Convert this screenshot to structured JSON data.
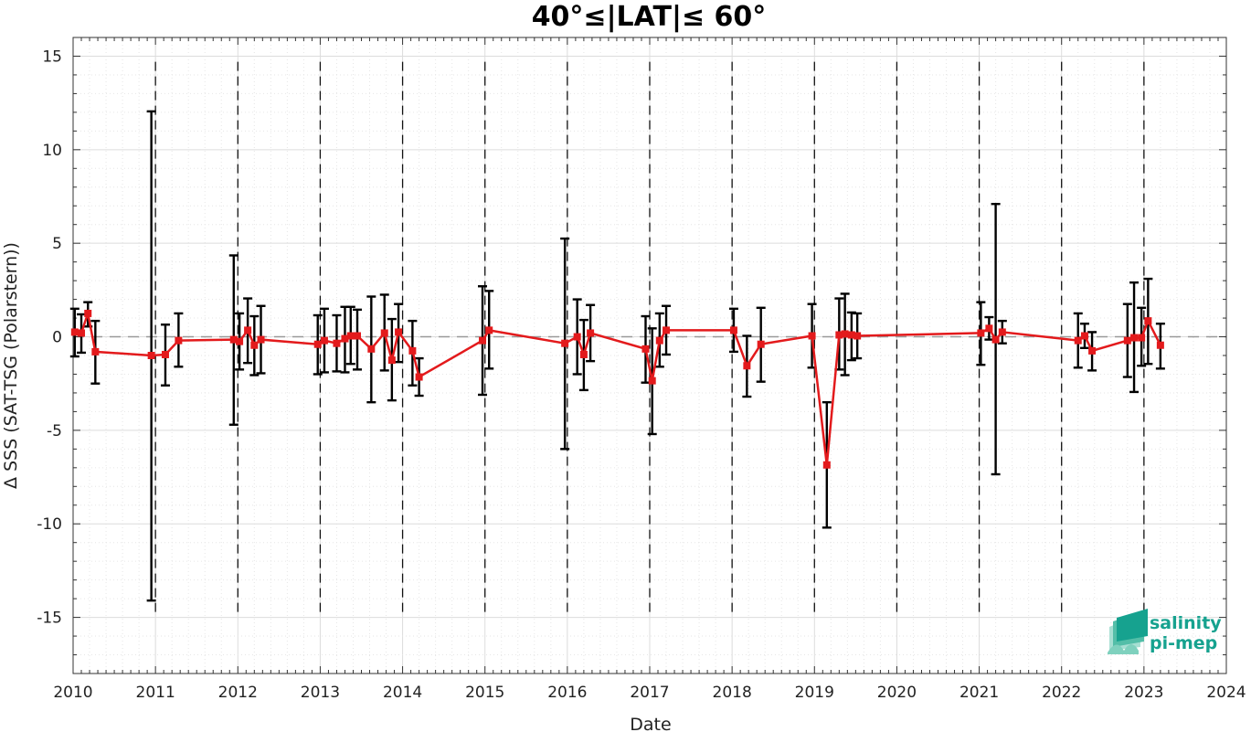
{
  "chart_data": {
    "type": "line",
    "title": "40°≤|LAT|≤ 60°",
    "xlabel": "Date",
    "ylabel": "Δ SSS (SAT-TSG (Polarstern))",
    "xlim": [
      2010,
      2024
    ],
    "ylim": [
      -18,
      16
    ],
    "x_ticks": [
      2010,
      2011,
      2012,
      2013,
      2014,
      2015,
      2016,
      2017,
      2018,
      2019,
      2020,
      2021,
      2022,
      2023,
      2024
    ],
    "y_ticks": [
      15,
      10,
      5,
      0,
      -5,
      -10,
      -15
    ],
    "grid": true,
    "reference_line": 0,
    "year_boundaries": [
      2011,
      2012,
      2013,
      2014,
      2015,
      2016,
      2017,
      2018,
      2019,
      2020,
      2021,
      2022,
      2023
    ],
    "series": [
      {
        "color": "#e31a1c",
        "x": [
          2010.02,
          2010.1,
          2010.18,
          2010.27,
          2010.95,
          2011.12,
          2011.28,
          2011.95,
          2012.02,
          2012.12,
          2012.2,
          2012.28,
          2012.97,
          2013.05,
          2013.2,
          2013.3,
          2013.37,
          2013.45,
          2013.62,
          2013.78,
          2013.87,
          2013.95,
          2014.12,
          2014.2,
          2014.97,
          2015.05,
          2015.97,
          2016.12,
          2016.2,
          2016.28,
          2016.95,
          2017.03,
          2017.12,
          2017.2,
          2018.02,
          2018.18,
          2018.35,
          2018.97,
          2019.15,
          2019.3,
          2019.37,
          2019.45,
          2019.52,
          2021.02,
          2021.12,
          2021.2,
          2021.28,
          2022.2,
          2022.28,
          2022.37,
          2022.8,
          2022.88,
          2022.97,
          2023.05,
          2023.2
        ],
        "y": [
          0.25,
          0.2,
          1.25,
          -0.8,
          -1.0,
          -0.95,
          -0.2,
          -0.15,
          -0.25,
          0.35,
          -0.45,
          -0.15,
          -0.4,
          -0.2,
          -0.35,
          -0.1,
          0.05,
          0.05,
          -0.65,
          0.2,
          -1.25,
          0.25,
          -0.75,
          -2.15,
          -0.2,
          0.35,
          -0.35,
          0.0,
          -0.95,
          0.2,
          -0.65,
          -2.35,
          -0.2,
          0.35,
          0.35,
          -1.55,
          -0.4,
          0.05,
          -6.85,
          0.1,
          0.15,
          0.1,
          0.05,
          0.2,
          0.45,
          -0.15,
          0.25,
          -0.2,
          0.05,
          -0.75,
          -0.2,
          -0.05,
          -0.05,
          0.85,
          -0.45
        ],
        "err_low": [
          -1.05,
          -0.85,
          0.55,
          -2.5,
          -14.1,
          -2.6,
          -1.6,
          -4.7,
          -1.75,
          -1.4,
          -2.05,
          -1.95,
          -2.0,
          -1.9,
          -1.85,
          -1.9,
          -1.45,
          -1.75,
          -3.5,
          -1.8,
          -3.4,
          -1.35,
          -2.6,
          -3.15,
          -3.1,
          -1.7,
          -6.0,
          -2.0,
          -2.85,
          -1.3,
          -2.45,
          -5.2,
          -1.6,
          -0.95,
          -0.8,
          -3.2,
          -2.4,
          -1.65,
          -10.2,
          -1.75,
          -2.05,
          -1.25,
          -1.15,
          -1.5,
          -0.15,
          -7.35,
          -0.35,
          -1.65,
          -0.6,
          -1.8,
          -2.15,
          -2.95,
          -1.55,
          -1.45,
          -1.7
        ],
        "err_high": [
          1.5,
          1.2,
          1.85,
          0.85,
          12.05,
          0.65,
          1.25,
          4.35,
          1.25,
          2.05,
          1.1,
          1.65,
          1.15,
          1.5,
          1.15,
          1.6,
          1.6,
          1.45,
          2.15,
          2.25,
          0.95,
          1.75,
          0.85,
          -1.15,
          2.7,
          2.45,
          5.25,
          2.0,
          0.9,
          1.7,
          1.1,
          0.45,
          1.25,
          1.65,
          1.5,
          0.05,
          1.55,
          1.75,
          -3.5,
          2.05,
          2.3,
          1.3,
          1.25,
          1.85,
          1.05,
          7.1,
          0.85,
          1.25,
          0.7,
          0.25,
          1.75,
          2.9,
          1.55,
          3.1,
          0.7
        ]
      }
    ]
  },
  "logo": {
    "line1": "salinity",
    "line2": "pi-mep"
  }
}
